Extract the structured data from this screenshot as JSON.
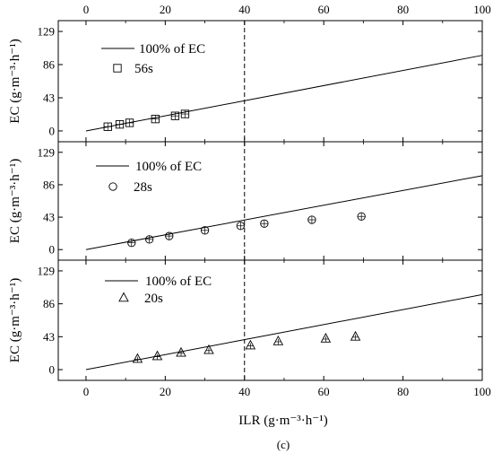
{
  "chart_data": {
    "type": "scatter",
    "caption": "(c)",
    "shared_x": {
      "label": "ILR (g·m⁻³·h⁻¹)",
      "lim": [
        -7,
        100
      ],
      "ticks": [
        0,
        20,
        40,
        60,
        80,
        100
      ],
      "tick_labels": [
        "0",
        "20",
        "40",
        "60",
        "80",
        "100"
      ]
    },
    "vertical_reference_x": 40,
    "panels": [
      {
        "ylabel": "EC (g·m⁻³·h⁻¹)",
        "ylim": [
          -14,
          143
        ],
        "yticks": [
          0,
          43,
          86,
          129
        ],
        "ytick_labels": [
          "0",
          "43",
          "86",
          "129"
        ],
        "line": {
          "name": "100% of EC",
          "x": [
            0,
            100
          ],
          "y": [
            0,
            98
          ]
        },
        "series": {
          "name": "56s",
          "marker": "square",
          "x": [
            5.5,
            8.5,
            11,
            17.5,
            22.5,
            25
          ],
          "y": [
            5.5,
            8.5,
            10.5,
            15.5,
            19.5,
            22
          ]
        }
      },
      {
        "ylabel": "EC (g·m⁻³·h⁻¹)",
        "ylim": [
          -14,
          143
        ],
        "yticks": [
          0,
          43,
          86,
          129
        ],
        "ytick_labels": [
          "0",
          "43",
          "86",
          "129"
        ],
        "line": {
          "name": "100% of EC",
          "x": [
            0,
            100
          ],
          "y": [
            0,
            98
          ]
        },
        "series": {
          "name": "28s",
          "marker": "circle",
          "x": [
            11.5,
            16,
            21,
            30,
            39,
            45,
            57,
            69.5
          ],
          "y": [
            9,
            13.5,
            18,
            25.5,
            31.5,
            34.5,
            39.5,
            44
          ]
        }
      },
      {
        "ylabel": "EC (g·m⁻³·h⁻¹)",
        "ylim": [
          -14,
          143
        ],
        "yticks": [
          0,
          43,
          86,
          129
        ],
        "ytick_labels": [
          "0",
          "43",
          "86",
          "129"
        ],
        "line": {
          "name": "100% of EC",
          "x": [
            0,
            100
          ],
          "y": [
            0,
            98
          ]
        },
        "series": {
          "name": "20s",
          "marker": "triangle",
          "x": [
            13,
            18,
            24,
            31,
            41.5,
            48.5,
            60.5,
            68
          ],
          "y": [
            14,
            17.5,
            22,
            25.5,
            31.5,
            37,
            40.5,
            43
          ]
        }
      }
    ]
  }
}
